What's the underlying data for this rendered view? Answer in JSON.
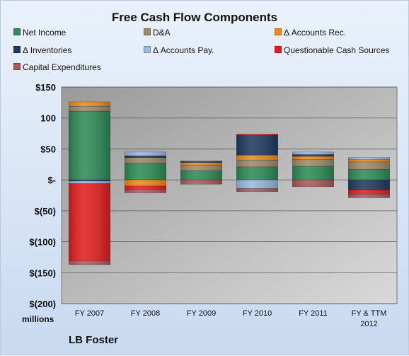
{
  "chart_data": {
    "type": "bar",
    "stacked": true,
    "title": "Free Cash Flow Components",
    "footer": "LB Foster",
    "ylabel": "millions",
    "ylim": [
      -200,
      150
    ],
    "yticks": [
      150,
      100,
      50,
      0,
      -50,
      -100,
      -150,
      -200
    ],
    "ytick_labels": [
      "$150",
      "100",
      "$50",
      "$-",
      "$(50)",
      "$(100)",
      "$(150)",
      "$(200)"
    ],
    "categories": [
      "FY 2007",
      "FY 2008",
      "FY 2009",
      "FY 2010",
      "FY 2011",
      "FY & TTM 2012"
    ],
    "grid": true,
    "legend_position": "top",
    "series": [
      {
        "name": "Net Income",
        "color": "#2e8b57",
        "values": [
          111,
          27,
          15,
          21,
          22,
          17
        ]
      },
      {
        "name": "D&A",
        "color": "#9c8a6a",
        "values": [
          8,
          9,
          9,
          11,
          11,
          12
        ]
      },
      {
        "name": "Δ Accounts Rec.",
        "color": "#f08a1a",
        "values": [
          7,
          -10,
          4,
          8,
          5,
          4
        ]
      },
      {
        "name": "Δ Inventories",
        "color": "#1f3a5f",
        "values": [
          -2,
          3,
          2,
          32,
          3,
          -16
        ]
      },
      {
        "name": "Δ Accounts Pay.",
        "color": "#9ab8e0",
        "values": [
          -4,
          6,
          1,
          -14,
          4,
          3
        ]
      },
      {
        "name": "Questionable Cash Sources",
        "color": "#e21f1f",
        "values": [
          -125,
          -5,
          0,
          2,
          0,
          -7
        ]
      },
      {
        "name": "Capital Expenditures",
        "color": "#a85a5a",
        "values": [
          -6,
          -6,
          -7,
          -5,
          -11,
          -6
        ]
      }
    ]
  }
}
